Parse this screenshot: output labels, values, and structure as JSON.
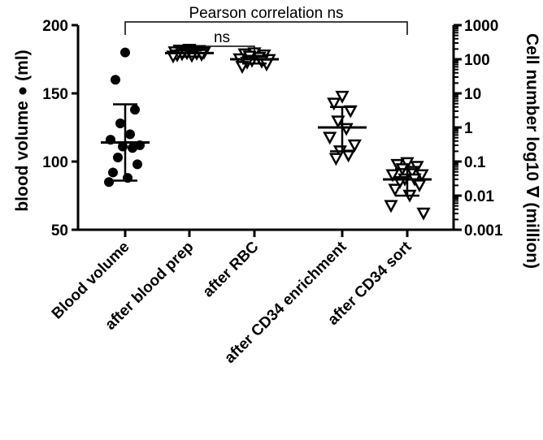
{
  "chart_data": {
    "type": "scatter",
    "categories": [
      "Blood volume",
      "after blood prep",
      "after RBC",
      "after CD34 enrichment",
      "after CD34 sort"
    ],
    "left_axis": {
      "label": "blood volume ● (ml)",
      "range": [
        50,
        200
      ],
      "ticks": [
        50,
        100,
        150,
        200
      ],
      "tick_labels": [
        "50",
        "100",
        "150",
        "200"
      ]
    },
    "right_axis": {
      "label": "Cell number log10 ∇ (million)",
      "scale": "log",
      "range": [
        0.001,
        1000
      ],
      "ticks": [
        0.001,
        0.01,
        0.1,
        1,
        10,
        100,
        1000
      ],
      "tick_labels": [
        "0.001",
        "0.01",
        "0.1",
        "1",
        "10",
        "100",
        "1000"
      ]
    },
    "series": [
      {
        "name": "blood volume",
        "marker": "filled-circle",
        "axis": "left",
        "category_index": 0,
        "values": [
          180,
          160,
          138,
          128,
          120,
          116,
          112,
          111,
          110,
          103,
          98,
          92,
          88,
          85
        ],
        "mean": 114,
        "error": [
          86,
          142
        ]
      },
      {
        "name": "cell number after blood prep",
        "marker": "open-triangle-down",
        "axis": "right",
        "category_index": 1,
        "values": [
          190,
          180,
          175,
          170,
          165,
          160,
          155,
          150,
          145,
          140,
          135,
          130,
          125,
          120
        ],
        "mean": 152,
        "error": [
          120,
          180
        ]
      },
      {
        "name": "cell number after RBC",
        "marker": "open-triangle-down",
        "axis": "right",
        "category_index": 2,
        "values": [
          150,
          140,
          130,
          120,
          110,
          100,
          95,
          90,
          85,
          80,
          70,
          60
        ],
        "mean": 100,
        "error": [
          75,
          125
        ]
      },
      {
        "name": "cell number after CD34 enrichment",
        "marker": "open-triangle-down",
        "axis": "right",
        "category_index": 3,
        "values": [
          8,
          5,
          3,
          1.5,
          0.9,
          0.5,
          0.3,
          0.2,
          0.15,
          0.12
        ],
        "mean": 1,
        "error": [
          0.2,
          4
        ]
      },
      {
        "name": "cell number after CD34 sort",
        "marker": "open-triangle-down",
        "axis": "right",
        "category_index": 4,
        "values": [
          0.09,
          0.08,
          0.07,
          0.06,
          0.05,
          0.04,
          0.04,
          0.03,
          0.03,
          0.025,
          0.02,
          0.015,
          0.01,
          0.005,
          0.003
        ],
        "mean": 0.03,
        "error": [
          0.01,
          0.06
        ]
      }
    ],
    "annotations": [
      {
        "text": "Pearson correlation ns",
        "span": [
          0,
          4
        ]
      },
      {
        "text": "ns",
        "span": [
          1,
          2
        ]
      }
    ],
    "grid": false
  }
}
